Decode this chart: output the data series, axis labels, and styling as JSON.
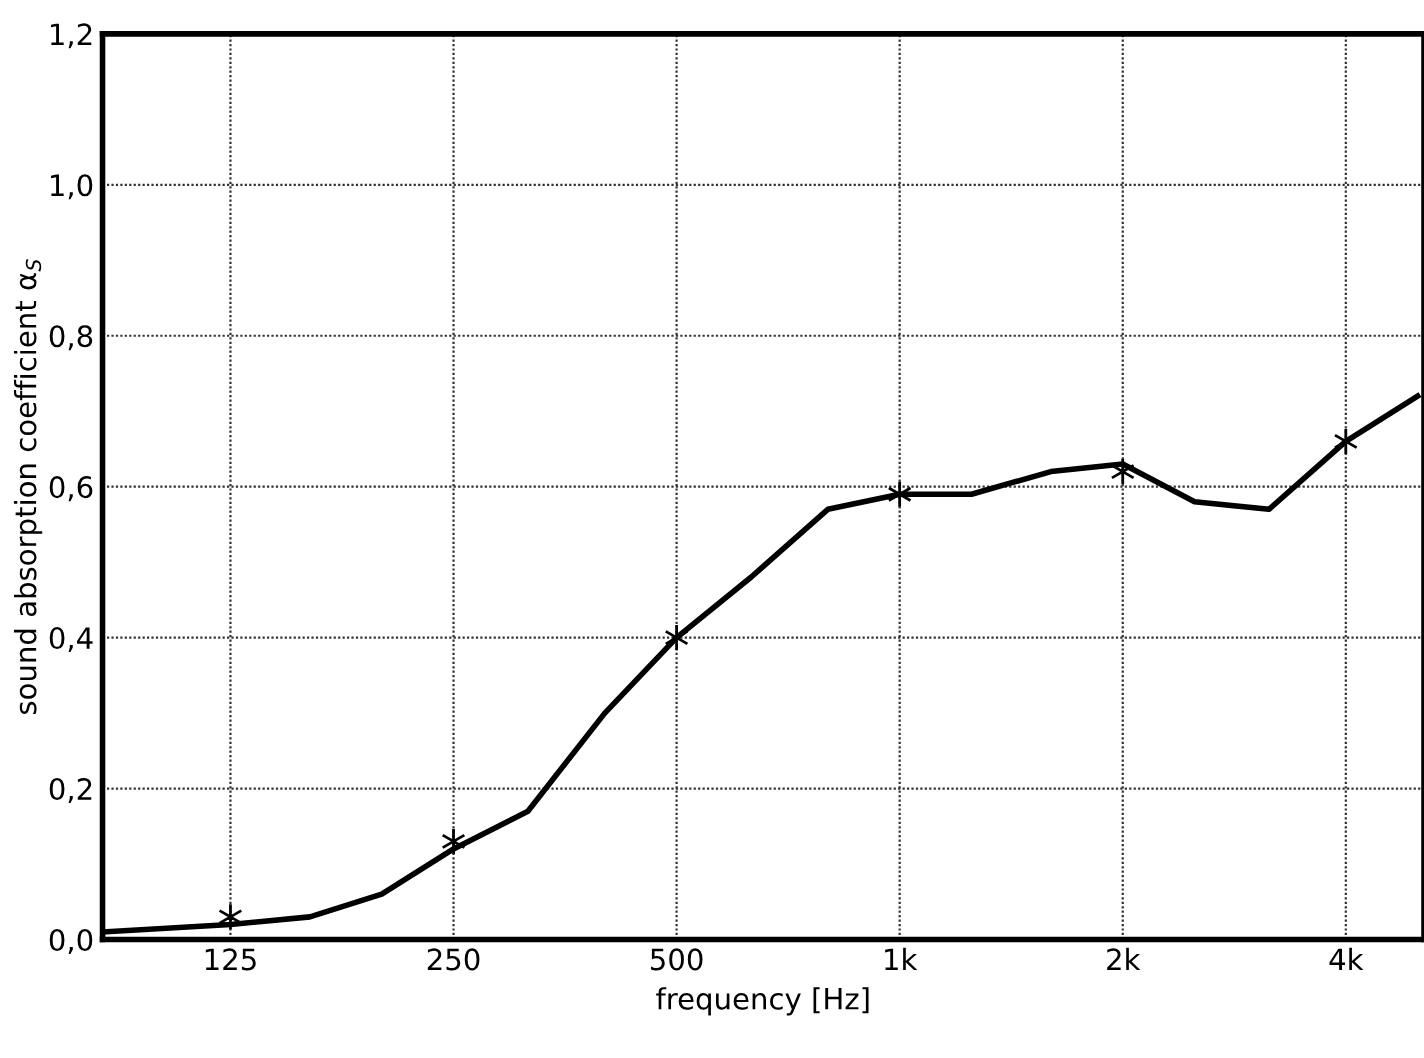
{
  "chart_data": {
    "type": "line",
    "xlabel": "frequency [Hz]",
    "ylabel": "sound absorption coefficient α$_{S}$",
    "log": "x",
    "xlim": [
      84,
      5100
    ],
    "xticks": [
      {
        "value": 125,
        "label": "125"
      },
      {
        "value": 250,
        "label": "250"
      },
      {
        "value": 500,
        "label": "500"
      },
      {
        "value": 1000,
        "label": "1k"
      },
      {
        "value": 2000,
        "label": "2k"
      },
      {
        "value": 4000,
        "label": "4k"
      }
    ],
    "ylim": [
      0,
      1.2
    ],
    "yticks": [
      {
        "value": 0,
        "label": "0,0"
      },
      {
        "value": 0.2,
        "label": "0,2"
      },
      {
        "value": 0.4,
        "label": "0,4"
      },
      {
        "value": 0.6,
        "label": "0,6"
      },
      {
        "value": 0.8,
        "label": "0,8"
      },
      {
        "value": 1.0,
        "label": "1,0"
      },
      {
        "value": 1.2,
        "label": "1,2"
      }
    ],
    "grid": true,
    "legend": false,
    "series": [
      {
        "color": "#000000",
        "marker": "none",
        "line_style": "solid",
        "x": [
          84,
          125,
          160,
          200,
          250,
          315,
          400,
          500,
          630,
          800,
          1000,
          1250,
          1600,
          2000,
          2500,
          3150,
          4000,
          5000
        ],
        "values": [
          0.01,
          0.02,
          0.03,
          0.06,
          0.12,
          0.17,
          0.3,
          0.4,
          0.48,
          0.57,
          0.59,
          0.59,
          0.62,
          0.63,
          0.58,
          0.57,
          0.66,
          0.72
        ]
      },
      {
        "type": "scatter",
        "color": "#000000",
        "marker": "cross",
        "x": [
          125,
          250,
          500,
          1000,
          2000,
          4000
        ],
        "values": [
          0.03,
          0.13,
          0.4,
          0.59,
          0.62,
          0.66
        ]
      }
    ]
  }
}
